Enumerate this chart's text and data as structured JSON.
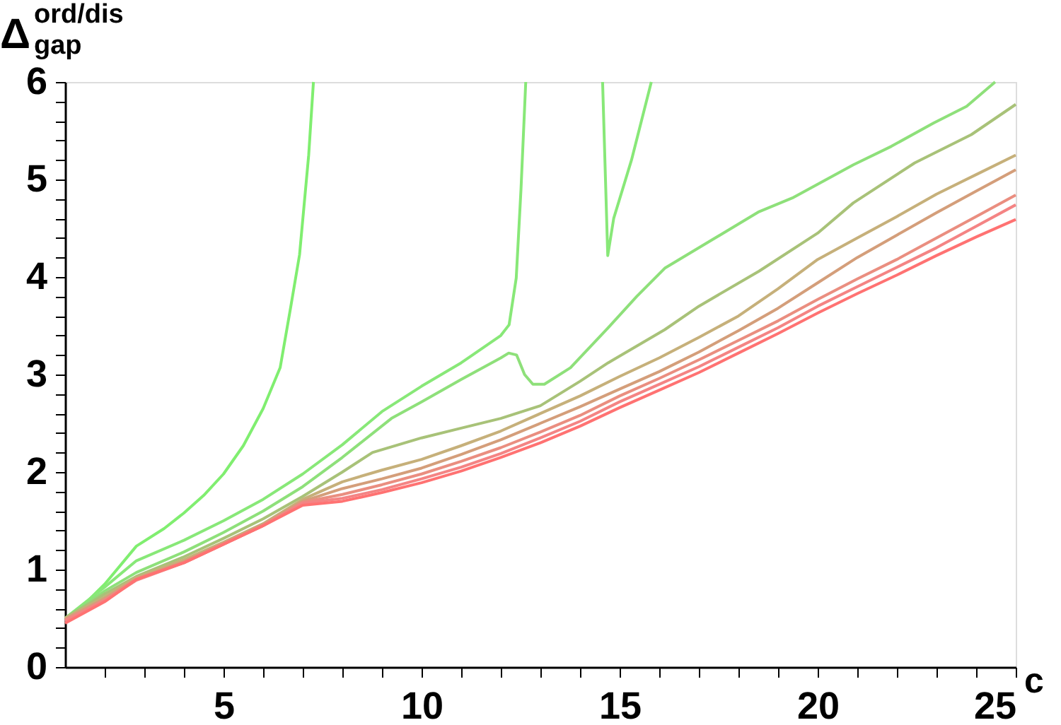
{
  "chart_data": {
    "type": "line",
    "xlabel": "c",
    "ylabel": "Δ$^{ord/dis}$$_{gap}$",
    "xlim": [
      1,
      25
    ],
    "ylim": [
      0,
      6
    ],
    "xticks": [
      {
        "value": 2,
        "label": null
      },
      {
        "value": 3,
        "label": null
      },
      {
        "value": 4,
        "label": null
      },
      5,
      {
        "value": 6,
        "label": null
      },
      {
        "value": 7,
        "label": null
      },
      {
        "value": 8,
        "label": null
      },
      {
        "value": 9,
        "label": null
      },
      10,
      {
        "value": 11,
        "label": null
      },
      {
        "value": 12,
        "label": null
      },
      {
        "value": 13,
        "label": null
      },
      {
        "value": 14,
        "label": null
      },
      15,
      {
        "value": 16,
        "label": null
      },
      {
        "value": 17,
        "label": null
      },
      {
        "value": 18,
        "label": null
      },
      {
        "value": 19,
        "label": null
      },
      20,
      {
        "value": 21,
        "label": null
      },
      {
        "value": 22,
        "label": null
      },
      {
        "value": 23,
        "label": null
      },
      {
        "value": 24,
        "label": null
      },
      25
    ],
    "yticks": [
      0,
      {
        "value": 0.2,
        "label": null
      },
      {
        "value": 0.4,
        "label": null
      },
      {
        "value": 0.6,
        "label": null
      },
      {
        "value": 0.8,
        "label": null
      },
      1,
      {
        "value": 1.2,
        "label": null
      },
      {
        "value": 1.4,
        "label": null
      },
      {
        "value": 1.6,
        "label": null
      },
      {
        "value": 1.8,
        "label": null
      },
      2,
      {
        "value": 2.2,
        "label": null
      },
      {
        "value": 2.4,
        "label": null
      },
      {
        "value": 2.6,
        "label": null
      },
      {
        "value": 2.8,
        "label": null
      },
      3,
      {
        "value": 3.2,
        "label": null
      },
      {
        "value": 3.4,
        "label": null
      },
      {
        "value": 3.6,
        "label": null
      },
      {
        "value": 3.8,
        "label": null
      },
      4,
      {
        "value": 4.2,
        "label": null
      },
      {
        "value": 4.4,
        "label": null
      },
      {
        "value": 4.6,
        "label": null
      },
      {
        "value": 4.8,
        "label": null
      },
      5,
      {
        "value": 5.2,
        "label": null
      },
      {
        "value": 5.4,
        "label": null
      },
      {
        "value": 5.6,
        "label": null
      },
      {
        "value": 5.8,
        "label": null
      },
      6
    ],
    "grid": false,
    "legend": false,
    "marker": "none",
    "line_style": "solid",
    "series": [
      {
        "color": "#80ee70",
        "x": [
          1,
          1.5,
          2,
          2.8,
          3.5,
          4,
          4.5,
          5,
          5.5,
          6,
          6.43,
          6.7,
          6.92,
          7.15,
          7.27
        ],
        "values": [
          0.5,
          0.65,
          0.85,
          1.24,
          1.42,
          1.58,
          1.76,
          1.98,
          2.27,
          2.65,
          3.07,
          3.7,
          4.23,
          5.25,
          6.0
        ]
      },
      {
        "color": "#88e878",
        "x": [
          1,
          2,
          2.8,
          4,
          5,
          6,
          7,
          8,
          9,
          10,
          11,
          12,
          12.21,
          12.39,
          12.51,
          12.63,
          13.5,
          14.57,
          14.7,
          14.85,
          15.3,
          15.8
        ],
        "values": [
          0.5,
          0.82,
          1.09,
          1.3,
          1.5,
          1.72,
          1.98,
          2.28,
          2.62,
          2.88,
          3.12,
          3.4,
          3.51,
          3.99,
          4.9,
          6.0,
          null,
          6.0,
          4.22,
          4.6,
          5.2,
          6.0
        ]
      },
      {
        "color": "#8ee07a",
        "x": [
          1,
          2,
          2.8,
          4,
          5,
          6,
          7,
          8,
          9.24,
          10,
          11,
          12,
          12.2,
          12.4,
          12.6,
          12.81,
          13.1,
          13.76,
          14.71,
          15.43,
          16.14,
          17.33,
          18.52,
          19.36,
          20.9,
          21.86,
          22.93,
          23.76,
          24.48
        ],
        "values": [
          0.5,
          0.78,
          0.97,
          1.18,
          1.38,
          1.6,
          1.85,
          2.15,
          2.55,
          2.72,
          2.95,
          3.17,
          3.22,
          3.2,
          3.0,
          2.9,
          2.9,
          3.07,
          3.48,
          3.8,
          4.09,
          4.38,
          4.67,
          4.81,
          5.15,
          5.34,
          5.58,
          5.75,
          6.0
        ]
      },
      {
        "color": "#a8c278",
        "x": [
          1,
          2,
          2.8,
          4,
          5,
          6,
          7,
          8,
          8.76,
          10,
          11,
          12,
          13,
          14,
          14.71,
          16.14,
          17,
          18.52,
          20,
          20.9,
          22.45,
          23.88,
          25
        ],
        "values": [
          0.5,
          0.75,
          0.93,
          1.13,
          1.32,
          1.52,
          1.75,
          2.0,
          2.2,
          2.35,
          2.45,
          2.55,
          2.68,
          2.93,
          3.12,
          3.46,
          3.7,
          4.06,
          4.45,
          4.76,
          5.17,
          5.46,
          5.77
        ]
      },
      {
        "color": "#c6b07a",
        "x": [
          1,
          2,
          2.8,
          4,
          5,
          6,
          7,
          8,
          9,
          10,
          11,
          12,
          13,
          14,
          15,
          16,
          17,
          18,
          19,
          20,
          21,
          22,
          23,
          24,
          25
        ],
        "values": [
          0.5,
          0.72,
          0.92,
          1.1,
          1.28,
          1.47,
          1.72,
          1.9,
          2.02,
          2.13,
          2.27,
          2.42,
          2.6,
          2.78,
          2.98,
          3.17,
          3.38,
          3.6,
          3.88,
          4.18,
          4.4,
          4.62,
          4.85,
          5.05,
          5.25
        ]
      },
      {
        "color": "#d49e7a",
        "x": [
          1,
          2,
          2.8,
          4,
          5,
          6,
          7,
          8,
          9,
          10,
          11,
          12,
          13,
          14,
          15,
          16,
          17,
          18,
          19,
          20,
          21,
          22,
          23,
          24,
          25
        ],
        "values": [
          0.49,
          0.7,
          0.9,
          1.08,
          1.27,
          1.46,
          1.7,
          1.83,
          1.93,
          2.04,
          2.18,
          2.33,
          2.5,
          2.67,
          2.85,
          3.03,
          3.23,
          3.45,
          3.68,
          3.94,
          4.2,
          4.43,
          4.66,
          4.88,
          5.1
        ]
      },
      {
        "color": "#ea8e80",
        "x": [
          1,
          2,
          2.8,
          4,
          5,
          6,
          7,
          8,
          9,
          10,
          11,
          12,
          13,
          14,
          15,
          16,
          17,
          18,
          19,
          20,
          21,
          22,
          23,
          24,
          25
        ],
        "values": [
          0.48,
          0.69,
          0.9,
          1.07,
          1.26,
          1.45,
          1.69,
          1.77,
          1.87,
          1.98,
          2.11,
          2.25,
          2.41,
          2.58,
          2.78,
          2.96,
          3.15,
          3.35,
          3.55,
          3.77,
          3.98,
          4.18,
          4.4,
          4.62,
          4.84
        ]
      },
      {
        "color": "#f48484",
        "x": [
          1,
          2,
          2.8,
          4,
          5,
          6,
          7,
          8,
          9,
          10,
          11,
          12,
          13,
          14,
          15,
          16,
          17,
          18,
          19,
          20,
          21,
          22,
          23,
          24,
          25
        ],
        "values": [
          0.47,
          0.68,
          0.89,
          1.07,
          1.26,
          1.45,
          1.68,
          1.73,
          1.82,
          1.93,
          2.05,
          2.19,
          2.35,
          2.52,
          2.72,
          2.9,
          3.08,
          3.28,
          3.48,
          3.7,
          3.9,
          4.1,
          4.3,
          4.52,
          4.74
        ]
      },
      {
        "color": "#ff7272",
        "x": [
          1,
          2,
          2.8,
          4,
          5,
          6,
          7,
          8,
          9,
          10,
          11,
          12,
          13,
          14,
          15,
          16,
          17,
          18,
          19,
          20,
          21,
          22,
          23,
          24,
          25
        ],
        "values": [
          0.45,
          0.67,
          0.9,
          1.07,
          1.26,
          1.45,
          1.66,
          1.7,
          1.79,
          1.89,
          2.01,
          2.15,
          2.3,
          2.47,
          2.66,
          2.84,
          3.02,
          3.22,
          3.42,
          3.63,
          3.83,
          4.02,
          4.22,
          4.41,
          4.59
        ]
      }
    ]
  }
}
